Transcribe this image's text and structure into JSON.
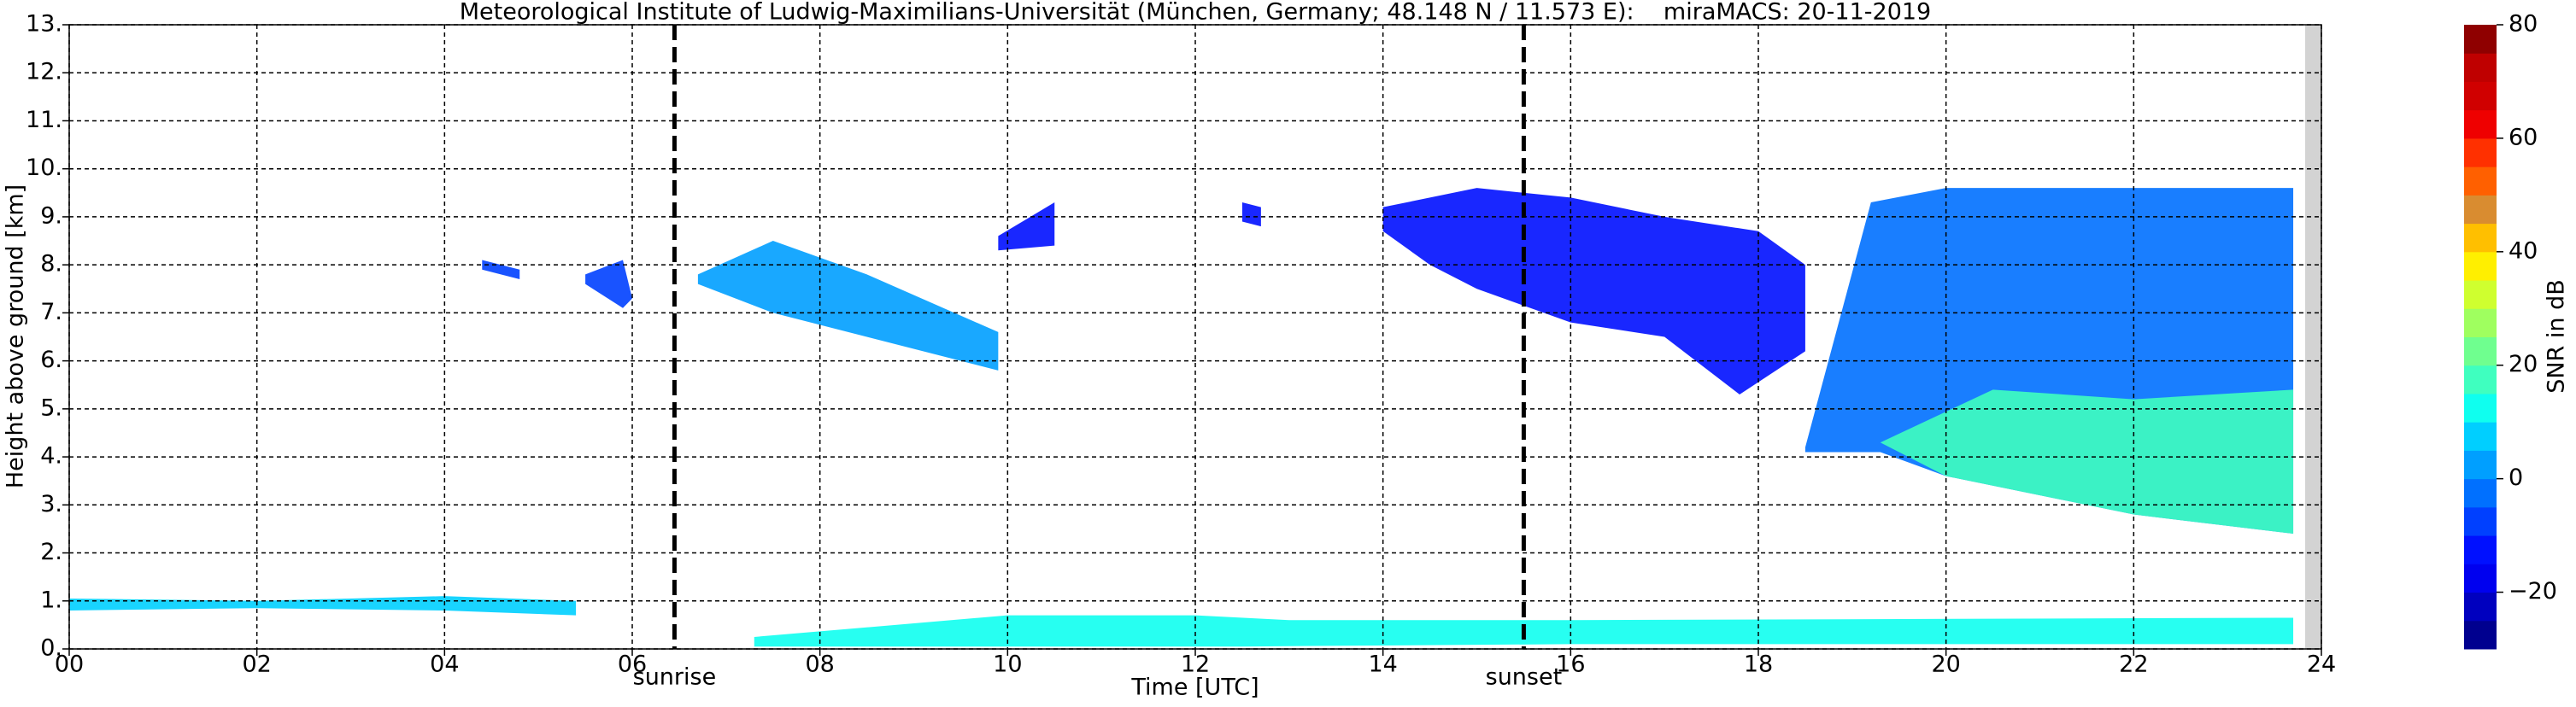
{
  "chart_data": {
    "type": "radar",
    "title": "Meteorological Institute of Ludwig-Maximilians-Universität (München, Germany; 48.148 N / 11.573 E):    miraMACS: 20-11-2019",
    "x_label": "Time [UTC]",
    "y_label": "Height above ground [km]",
    "xlim": [
      0,
      24
    ],
    "ylim": [
      0,
      13
    ],
    "xticks": [
      {
        "value": 0,
        "label": "00"
      },
      {
        "value": 2,
        "label": "02"
      },
      {
        "value": 4,
        "label": "04"
      },
      {
        "value": 6,
        "label": "06"
      },
      {
        "value": 8,
        "label": "08"
      },
      10,
      12,
      14,
      16,
      18,
      20,
      22,
      24
    ],
    "yticks": [
      {
        "value": 0,
        "label": "0."
      },
      {
        "value": 1,
        "label": "1."
      },
      {
        "value": 2,
        "label": "2."
      },
      {
        "value": 3,
        "label": "3."
      },
      {
        "value": 4,
        "label": "4."
      },
      {
        "value": 5,
        "label": "5."
      },
      {
        "value": 6,
        "label": "6."
      },
      {
        "value": 7,
        "label": "7."
      },
      {
        "value": 8,
        "label": "8."
      },
      {
        "value": 9,
        "label": "9."
      },
      {
        "value": 10,
        "label": "10."
      },
      {
        "value": 11,
        "label": "11."
      },
      {
        "value": 12,
        "label": "12."
      },
      {
        "value": 13,
        "label": "13."
      }
    ],
    "grid": true,
    "annotations": [
      {
        "label": "sunrise",
        "x": 6.45
      },
      {
        "label": "sunset",
        "x": 15.5
      }
    ],
    "colorbar": {
      "label": "SNR in dB",
      "lim": [
        -30,
        80
      ],
      "ticks": [
        {
          "value": -20,
          "label": "−20"
        },
        0,
        20,
        40,
        60,
        80
      ],
      "colors": [
        "#00008f",
        "#0000bf",
        "#0000ef",
        "#0010ff",
        "#0040ff",
        "#0070ff",
        "#009fff",
        "#00cfff",
        "#0fffef",
        "#3fffbf",
        "#6fff8f",
        "#9fff5f",
        "#cfff2f",
        "#ffef00",
        "#ffbf00",
        "#d98c30",
        "#ff6000",
        "#ff3000",
        "#ef0000",
        "#d00000",
        "#bf0000",
        "#8f0000"
      ]
    },
    "regions": [
      {
        "x": [
          0,
          2,
          4,
          5.4,
          5.4,
          4,
          2,
          0
        ],
        "y": [
          0.8,
          0.85,
          0.8,
          0.7,
          1.0,
          1.1,
          1.0,
          1.05
        ],
        "snr": 5
      },
      {
        "x": [
          7.3,
          10,
          12.5,
          16,
          23.7,
          23.7,
          16,
          13,
          12,
          10,
          7.3
        ],
        "y": [
          0.05,
          0.05,
          0.05,
          0.1,
          0.1,
          0.65,
          0.6,
          0.6,
          0.7,
          0.7,
          0.25
        ],
        "snr": 10
      },
      {
        "x": [
          4.4,
          4.8,
          4.8,
          4.4
        ],
        "y": [
          7.9,
          7.7,
          7.9,
          8.1
        ],
        "snr": -10
      },
      {
        "x": [
          5.5,
          5.9,
          6.0,
          5.9,
          5.5
        ],
        "y": [
          7.8,
          8.1,
          7.3,
          7.1,
          7.6
        ],
        "snr": -8
      },
      {
        "x": [
          6.7,
          7.5,
          8.5,
          9.9,
          9.9,
          8.5,
          7.5,
          6.7
        ],
        "y": [
          7.8,
          8.5,
          7.8,
          6.6,
          5.8,
          6.5,
          7.0,
          7.6
        ],
        "snr": 2
      },
      {
        "x": [
          9.9,
          10.5,
          10.5,
          9.9
        ],
        "y": [
          8.6,
          9.3,
          8.4,
          8.3
        ],
        "snr": -15
      },
      {
        "x": [
          12.5,
          12.7,
          12.7,
          12.5
        ],
        "y": [
          9.3,
          9.2,
          8.8,
          8.9
        ],
        "snr": -15
      },
      {
        "x": [
          14.0,
          15,
          16,
          17,
          18,
          18.5,
          18.5,
          17.8,
          17,
          16,
          15,
          14.5,
          14.0
        ],
        "y": [
          9.2,
          9.6,
          9.4,
          9.0,
          8.7,
          8.0,
          6.2,
          5.3,
          6.5,
          6.8,
          7.5,
          8.0,
          8.7
        ],
        "snr": -12
      },
      {
        "x": [
          18.5,
          19.2,
          20,
          23.7,
          23.7,
          22,
          20,
          19.3,
          18.5
        ],
        "y": [
          4.2,
          9.3,
          9.6,
          9.6,
          2.4,
          2.8,
          3.6,
          4.1,
          4.1
        ],
        "snr": -5
      },
      {
        "x": [
          19.3,
          20.5,
          22,
          23.7,
          23.7,
          22,
          20
        ],
        "y": [
          4.3,
          5.4,
          5.2,
          5.4,
          2.4,
          2.8,
          3.6
        ],
        "snr": 15
      }
    ]
  }
}
